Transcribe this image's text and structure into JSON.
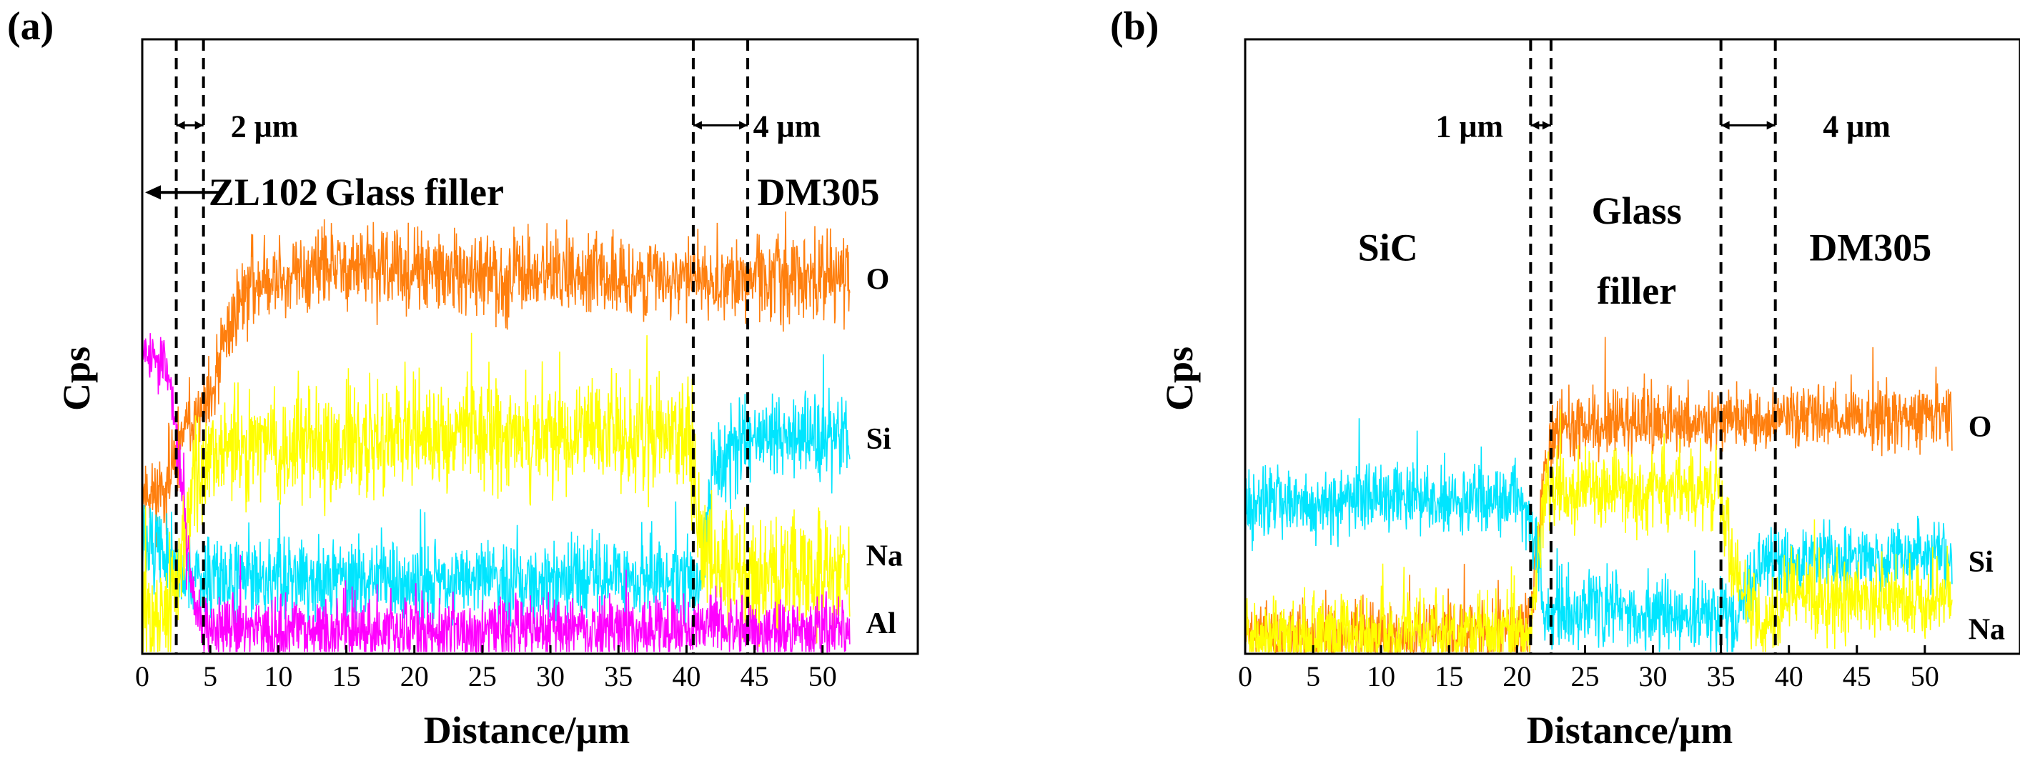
{
  "chart_data": [
    {
      "type": "line",
      "panel_label": "(a)",
      "xlabel": "Distance/μm",
      "ylabel": "Cps",
      "xlim": [
        0,
        57
      ],
      "x_ticks": [
        0,
        5,
        10,
        15,
        20,
        25,
        30,
        35,
        40,
        45,
        50
      ],
      "ylim": [
        0,
        1
      ],
      "y_ticks_shown": false,
      "boundaries": [
        2.5,
        4.5,
        40.5,
        44.5
      ],
      "annotations": [
        {
          "text": "2 μm",
          "x_start": 2.5,
          "x_end": 4.5,
          "x": 6.5,
          "y": 0.86
        },
        {
          "text": "4 μm",
          "x_start": 40.5,
          "x_end": 44.5,
          "x": 44.9,
          "y": 0.86
        }
      ],
      "regions": [
        {
          "text": "ZL102",
          "x": 5.3,
          "y": 0.73,
          "arrow": "left"
        },
        {
          "text": "Glass filler",
          "x": 20.0,
          "y": 0.73
        },
        {
          "text": "DM305",
          "x": 49.7,
          "y": 0.73
        }
      ],
      "series": [
        {
          "name": "O",
          "color": "#ff7f0e",
          "points": [
            [
              0,
              0.27
            ],
            [
              1,
              0.26
            ],
            [
              2,
              0.28
            ],
            [
              3,
              0.36
            ],
            [
              4,
              0.38
            ],
            [
              5,
              0.4
            ],
            [
              6,
              0.5
            ],
            [
              7,
              0.57
            ],
            [
              8,
              0.6
            ],
            [
              10,
              0.61
            ],
            [
              15,
              0.63
            ],
            [
              20,
              0.62
            ],
            [
              25,
              0.61
            ],
            [
              30,
              0.62
            ],
            [
              35,
              0.61
            ],
            [
              40,
              0.61
            ],
            [
              45,
              0.61
            ],
            [
              50,
              0.61
            ],
            [
              52,
              0.61
            ]
          ],
          "noise": 0.05,
          "label_y": 0.61
        },
        {
          "name": "Si",
          "color": "#00e5ff",
          "points": [
            [
              0,
              0.18
            ],
            [
              2,
              0.16
            ],
            [
              3,
              0.13
            ],
            [
              4,
              0.12
            ],
            [
              10,
              0.12
            ],
            [
              20,
              0.12
            ],
            [
              30,
              0.12
            ],
            [
              40,
              0.12
            ],
            [
              41,
              0.11
            ],
            [
              42,
              0.3
            ],
            [
              44,
              0.35
            ],
            [
              52,
              0.35
            ]
          ],
          "noise": 0.05,
          "label_y": 0.35
        },
        {
          "name": "Na",
          "color": "#ffff00",
          "points": [
            [
              0,
              0.05
            ],
            [
              2,
              0.06
            ],
            [
              3,
              0.18
            ],
            [
              4,
              0.3
            ],
            [
              6,
              0.33
            ],
            [
              20,
              0.35
            ],
            [
              30,
              0.36
            ],
            [
              40,
              0.36
            ],
            [
              41,
              0.18
            ],
            [
              44,
              0.12
            ],
            [
              52,
              0.13
            ]
          ],
          "noise": 0.07,
          "label_y": 0.16
        },
        {
          "name": "Al",
          "color": "#ff00ff",
          "points": [
            [
              0,
              0.5
            ],
            [
              1,
              0.48
            ],
            [
              2,
              0.46
            ],
            [
              3,
              0.25
            ],
            [
              4,
              0.05
            ],
            [
              5,
              0.04
            ],
            [
              20,
              0.04
            ],
            [
              40,
              0.04
            ],
            [
              52,
              0.04
            ]
          ],
          "noise": 0.04,
          "label_y": 0.05
        }
      ]
    },
    {
      "type": "line",
      "panel_label": "(b)",
      "xlabel": "Distance/μm",
      "ylabel": "Cps",
      "xlim": [
        0,
        57
      ],
      "x_ticks": [
        0,
        5,
        10,
        15,
        20,
        25,
        30,
        35,
        40,
        45,
        50
      ],
      "ylim": [
        0,
        1
      ],
      "y_ticks_shown": false,
      "boundaries": [
        21,
        22.5,
        35,
        39
      ],
      "annotations": [
        {
          "text": "1 μm",
          "x_start": 21,
          "x_end": 22.5,
          "x": 16.5,
          "y": 0.86
        },
        {
          "text": "4 μm",
          "x_start": 35,
          "x_end": 39,
          "x": 42.5,
          "y": 0.86
        }
      ],
      "regions": [
        {
          "text": "SiC",
          "x": 10.5,
          "y": 0.64
        },
        {
          "text": "Glass",
          "x": 28.8,
          "y": 0.7
        },
        {
          "text": "filler",
          "x": 28.8,
          "y": 0.57
        },
        {
          "text": "DM305",
          "x": 46.0,
          "y": 0.64
        }
      ],
      "series": [
        {
          "name": "O",
          "color": "#ff7f0e",
          "points": [
            [
              0,
              0.03
            ],
            [
              20,
              0.03
            ],
            [
              21,
              0.05
            ],
            [
              22,
              0.3
            ],
            [
              23,
              0.37
            ],
            [
              30,
              0.38
            ],
            [
              35,
              0.38
            ],
            [
              40,
              0.38
            ],
            [
              52,
              0.39
            ]
          ],
          "noise": 0.04,
          "label_y": 0.37
        },
        {
          "name": "Si",
          "color": "#00e5ff",
          "points": [
            [
              0,
              0.24
            ],
            [
              10,
              0.25
            ],
            [
              20,
              0.25
            ],
            [
              21,
              0.23
            ],
            [
              22,
              0.07
            ],
            [
              30,
              0.07
            ],
            [
              35,
              0.06
            ],
            [
              36,
              0.05
            ],
            [
              38,
              0.15
            ],
            [
              40,
              0.15
            ],
            [
              52,
              0.16
            ]
          ],
          "noise": 0.045,
          "label_y": 0.15
        },
        {
          "name": "Na",
          "color": "#ffff00",
          "points": [
            [
              0,
              0.03
            ],
            [
              20,
              0.03
            ],
            [
              21,
              0.04
            ],
            [
              22,
              0.26
            ],
            [
              30,
              0.27
            ],
            [
              35,
              0.26
            ],
            [
              36,
              0.12
            ],
            [
              38,
              0.06
            ],
            [
              40,
              0.09
            ],
            [
              52,
              0.09
            ]
          ],
          "noise": 0.05,
          "label_y": 0.04
        }
      ]
    }
  ]
}
